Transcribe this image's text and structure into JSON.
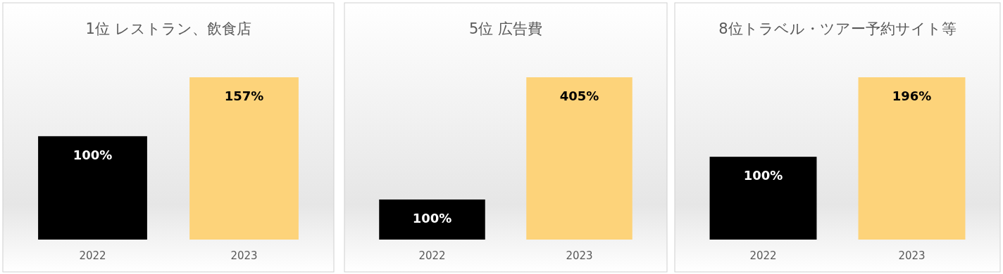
{
  "chart_data": [
    {
      "type": "bar",
      "title": "1位 レストラン、飲食店",
      "categories": [
        "2022",
        "2023"
      ],
      "values": [
        100,
        157
      ],
      "colors": [
        "#000000",
        "#fdd37a"
      ],
      "value_labels": [
        "100%",
        "157%"
      ]
    },
    {
      "type": "bar",
      "title": "5位 広告費",
      "categories": [
        "2022",
        "2023"
      ],
      "values": [
        100,
        405
      ],
      "colors": [
        "#000000",
        "#fdd37a"
      ],
      "value_labels": [
        "100%",
        "405%"
      ]
    },
    {
      "type": "bar",
      "title": "8位トラベル・ツアー予約サイト等",
      "categories": [
        "2022",
        "2023"
      ],
      "values": [
        100,
        196
      ],
      "colors": [
        "#000000",
        "#fdd37a"
      ],
      "value_labels": [
        "100%",
        "196%"
      ]
    }
  ]
}
